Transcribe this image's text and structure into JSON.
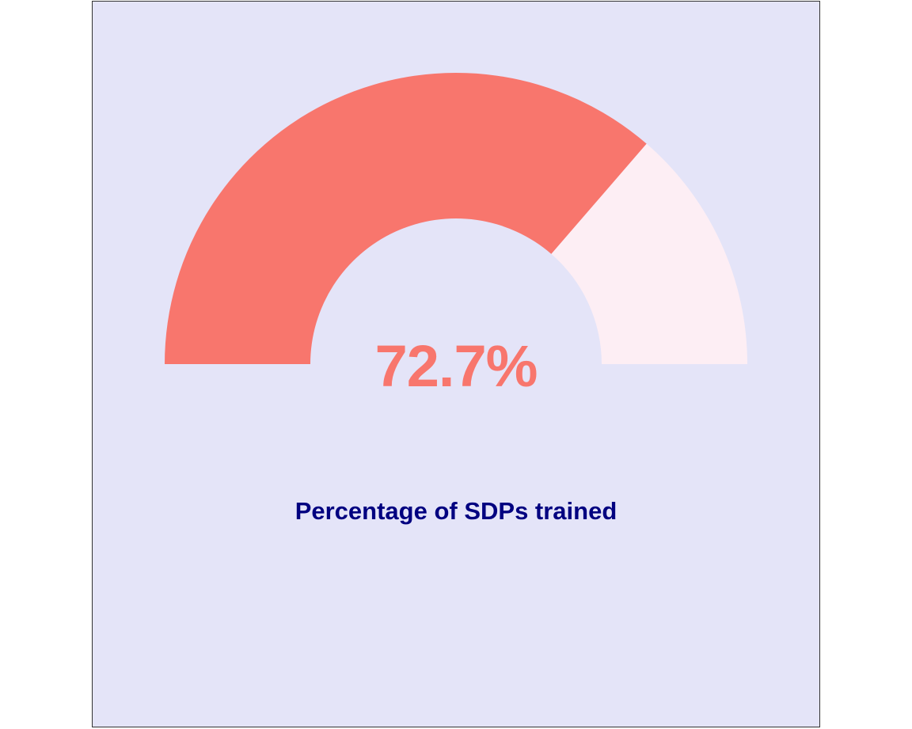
{
  "chart_data": {
    "type": "gauge",
    "value": 72.7,
    "min": 0,
    "max": 100,
    "value_label": "72.7%",
    "caption": "Percentage of SDPs trained",
    "colors": {
      "background": "#e4e4f8",
      "filled": "#f8766d",
      "remaining": "#fdeef4",
      "value_text": "#f8766d",
      "caption_text": "#000080"
    }
  }
}
